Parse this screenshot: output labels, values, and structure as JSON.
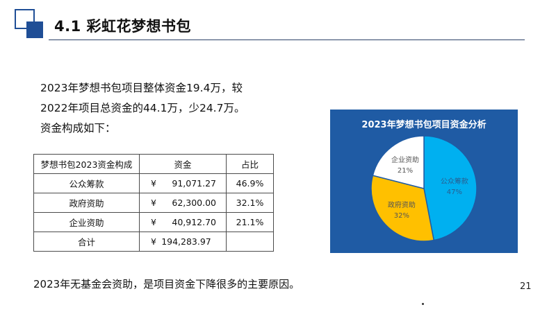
{
  "slide": {
    "title": "4.1 彩虹花梦想书包",
    "page_number": "21"
  },
  "intro": {
    "line1": "2023年梦想书包项目整体资金19.4万，较",
    "line2": "2022年项目总资金的44.1万，少24.7万。",
    "line3": "资金构成如下："
  },
  "table": {
    "headers": [
      "梦想书包2023资金构成",
      "资金",
      "占比"
    ],
    "currency": "¥",
    "rows": [
      {
        "name": "公众筹款",
        "amount": "91,071.27",
        "share": "46.9%"
      },
      {
        "name": "政府资助",
        "amount": "62,300.00",
        "share": "32.1%"
      },
      {
        "name": "企业资助",
        "amount": "40,912.70",
        "share": "21.1%"
      }
    ],
    "total": {
      "name": "合计",
      "amount": "194,283.97",
      "share": ""
    }
  },
  "conclusion": "2023年无基金会资助，是项目资金下降很多的主要原因。",
  "chart_data": {
    "type": "pie",
    "title": "2023年梦想书包项目资金分析",
    "categories": [
      "公众筹款",
      "政府资助",
      "企业资助"
    ],
    "values": [
      47,
      32,
      21
    ],
    "value_labels": [
      "47%",
      "32%",
      "21%"
    ],
    "colors": [
      "#00b0f0",
      "#ffc000",
      "#ffffff"
    ],
    "label_colors": [
      "#2a5d8f",
      "#555555",
      "#555555"
    ],
    "start_angle_deg": 0,
    "direction": "clockwise",
    "background": "#1f5ba4",
    "legend": "none"
  }
}
